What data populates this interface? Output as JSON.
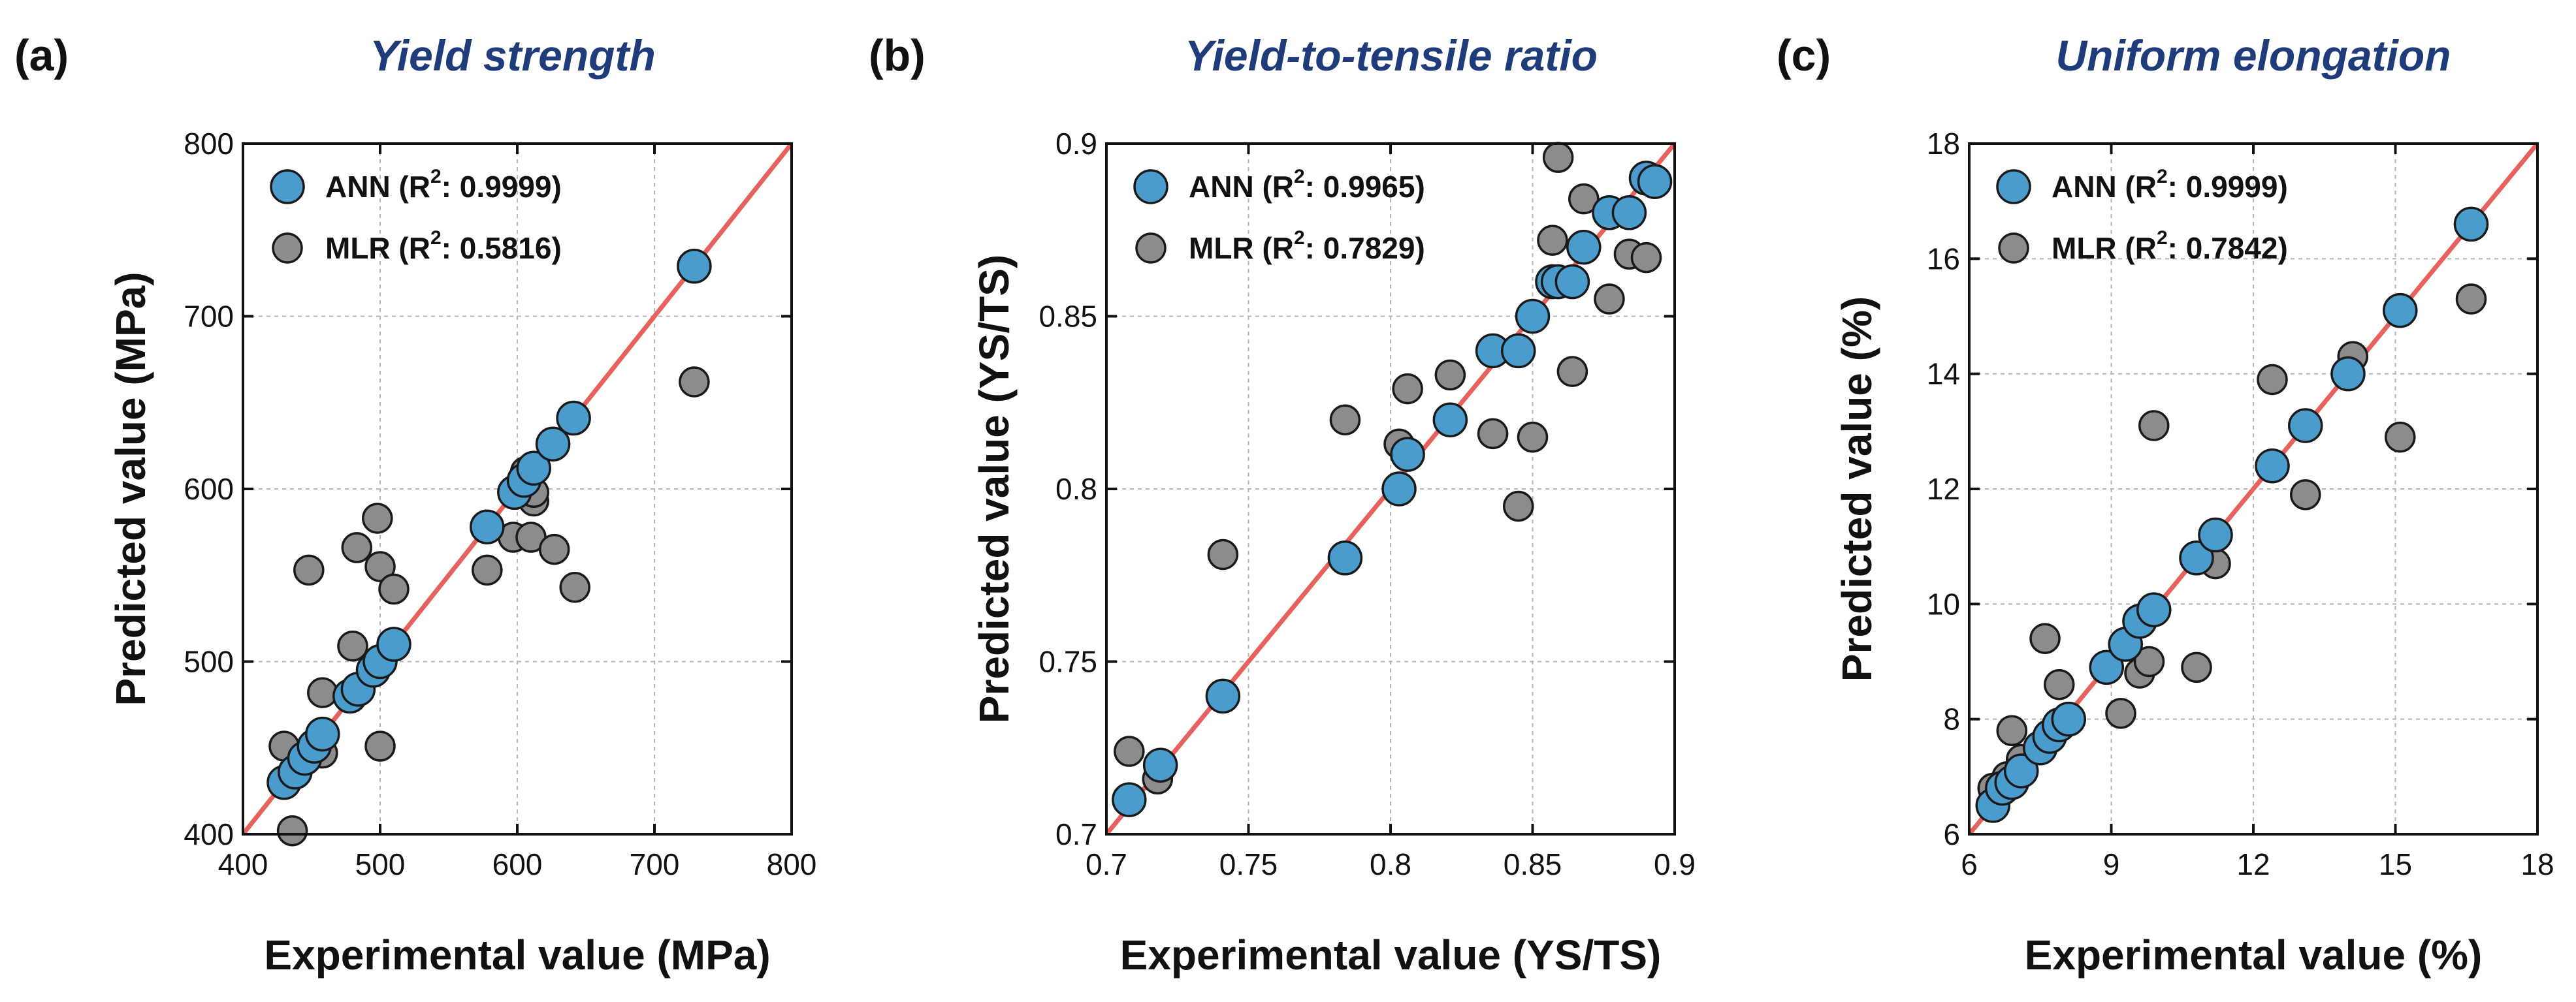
{
  "colors": {
    "ann": "#4a9ccd",
    "mlr": "#8c8c8c",
    "fit_line": "#e8625d",
    "title": "#1f3c7a",
    "grid": "#b5b5b5",
    "marker_edge": "#1a1a1a"
  },
  "chart_data": [
    {
      "type": "scatter",
      "panel_label": "(a)",
      "title": "Yield strength",
      "xlabel": "Experimental value (MPa)",
      "ylabel": "Predicted value (MPa)",
      "xlim": [
        400,
        800
      ],
      "ylim": [
        400,
        800
      ],
      "xticks": [
        400,
        500,
        600,
        700,
        800
      ],
      "yticks": [
        400,
        500,
        600,
        700,
        800
      ],
      "xtick_labels": [
        "400",
        "500",
        "600",
        "700",
        "800"
      ],
      "ytick_labels": [
        "400",
        "500",
        "600",
        "700",
        "800"
      ],
      "grid": true,
      "legend_position": "top-left",
      "reference_line": "y = x",
      "series": [
        {
          "name": "ANN",
          "label_prefix": "ANN (R",
          "r2_text": ": 0.9999)",
          "points": [
            [
              430,
              430
            ],
            [
              438,
              436
            ],
            [
              445,
              444
            ],
            [
              452,
              451
            ],
            [
              458,
              458
            ],
            [
              478,
              480
            ],
            [
              484,
              484
            ],
            [
              495,
              495
            ],
            [
              500,
              500
            ],
            [
              510,
              510
            ],
            [
              578,
              578
            ],
            [
              598,
              598
            ],
            [
              605,
              605
            ],
            [
              612,
              612
            ],
            [
              626,
              626
            ],
            [
              641,
              641
            ],
            [
              729,
              729
            ]
          ]
        },
        {
          "name": "MLR",
          "label_prefix": "MLR (R",
          "r2_text": ": 0.5816)",
          "points": [
            [
              430,
              451
            ],
            [
              436,
              402
            ],
            [
              448,
              553
            ],
            [
              458,
              482
            ],
            [
              458,
              447
            ],
            [
              480,
              509
            ],
            [
              483,
              566
            ],
            [
              498,
              583
            ],
            [
              500,
              555
            ],
            [
              500,
              451
            ],
            [
              510,
              542
            ],
            [
              578,
              553
            ],
            [
              597,
              572
            ],
            [
              606,
              610
            ],
            [
              610,
              572
            ],
            [
              612,
              593
            ],
            [
              612,
              598
            ],
            [
              627,
              565
            ],
            [
              642,
              543
            ],
            [
              729,
              662
            ]
          ]
        }
      ]
    },
    {
      "type": "scatter",
      "panel_label": "(b)",
      "title": "Yield-to-tensile ratio",
      "xlabel": "Experimental value (YS/TS)",
      "ylabel": "Predicted value (YS/TS)",
      "xlim": [
        0.7,
        0.9
      ],
      "ylim": [
        0.7,
        0.9
      ],
      "xticks": [
        0.7,
        0.75,
        0.8,
        0.85,
        0.9
      ],
      "yticks": [
        0.7,
        0.75,
        0.8,
        0.85,
        0.9
      ],
      "xtick_labels": [
        "0.7",
        "0.75",
        "0.8",
        "0.85",
        "0.9"
      ],
      "ytick_labels": [
        "0.7",
        "0.75",
        "0.8",
        "0.85",
        "0.9"
      ],
      "grid": true,
      "legend_position": "top-left",
      "reference_line": "y = x",
      "series": [
        {
          "name": "ANN",
          "label_prefix": "ANN (R",
          "r2_text": ": 0.9965)",
          "points": [
            [
              0.708,
              0.71
            ],
            [
              0.719,
              0.72
            ],
            [
              0.741,
              0.74
            ],
            [
              0.784,
              0.78
            ],
            [
              0.803,
              0.8
            ],
            [
              0.806,
              0.81
            ],
            [
              0.821,
              0.82
            ],
            [
              0.836,
              0.84
            ],
            [
              0.845,
              0.84
            ],
            [
              0.85,
              0.85
            ],
            [
              0.857,
              0.86
            ],
            [
              0.859,
              0.86
            ],
            [
              0.864,
              0.86
            ],
            [
              0.868,
              0.87
            ],
            [
              0.877,
              0.88
            ],
            [
              0.884,
              0.88
            ],
            [
              0.89,
              0.89
            ],
            [
              0.893,
              0.889
            ]
          ]
        },
        {
          "name": "MLR",
          "label_prefix": "MLR (R",
          "r2_text": ": 0.7829)",
          "points": [
            [
              0.708,
              0.724
            ],
            [
              0.718,
              0.716
            ],
            [
              0.741,
              0.781
            ],
            [
              0.784,
              0.82
            ],
            [
              0.803,
              0.813
            ],
            [
              0.806,
              0.829
            ],
            [
              0.821,
              0.833
            ],
            [
              0.836,
              0.816
            ],
            [
              0.845,
              0.795
            ],
            [
              0.85,
              0.815
            ],
            [
              0.857,
              0.872
            ],
            [
              0.859,
              0.896
            ],
            [
              0.864,
              0.834
            ],
            [
              0.868,
              0.884
            ],
            [
              0.877,
              0.855
            ],
            [
              0.884,
              0.868
            ],
            [
              0.89,
              0.867
            ]
          ]
        }
      ]
    },
    {
      "type": "scatter",
      "panel_label": "(c)",
      "title": "Uniform elongation",
      "xlabel": "Experimental value (%)",
      "ylabel": "Predicted value (%)",
      "xlim": [
        6,
        18
      ],
      "ylim": [
        6,
        18
      ],
      "xticks": [
        6,
        9,
        12,
        15,
        18
      ],
      "yticks": [
        6,
        8,
        10,
        12,
        14,
        16,
        18
      ],
      "xtick_labels": [
        "6",
        "9",
        "12",
        "15",
        "18"
      ],
      "ytick_labels": [
        "6",
        "8",
        "10",
        "12",
        "14",
        "16",
        "18"
      ],
      "grid": true,
      "legend_position": "top-left",
      "reference_line": "y = x",
      "series": [
        {
          "name": "ANN",
          "label_prefix": "ANN (R",
          "r2_text": ": 0.9999)",
          "points": [
            [
              6.5,
              6.5
            ],
            [
              6.7,
              6.8
            ],
            [
              6.9,
              6.9
            ],
            [
              7.1,
              7.1
            ],
            [
              7.5,
              7.5
            ],
            [
              7.7,
              7.7
            ],
            [
              7.9,
              7.9
            ],
            [
              8.1,
              8.0
            ],
            [
              8.9,
              8.9
            ],
            [
              9.3,
              9.3
            ],
            [
              9.6,
              9.7
            ],
            [
              9.9,
              9.9
            ],
            [
              10.8,
              10.8
            ],
            [
              11.2,
              11.2
            ],
            [
              12.4,
              12.4
            ],
            [
              13.1,
              13.1
            ],
            [
              14.0,
              14.0
            ],
            [
              15.1,
              15.1
            ],
            [
              16.6,
              16.6
            ]
          ]
        },
        {
          "name": "MLR",
          "label_prefix": "MLR (R",
          "r2_text": ": 0.7842)",
          "points": [
            [
              6.5,
              6.8
            ],
            [
              6.8,
              7.0
            ],
            [
              6.9,
              7.8
            ],
            [
              7.1,
              7.3
            ],
            [
              7.6,
              9.4
            ],
            [
              7.9,
              8.6
            ],
            [
              8.1,
              8.0
            ],
            [
              9.2,
              8.1
            ],
            [
              9.6,
              8.8
            ],
            [
              9.8,
              9.0
            ],
            [
              9.9,
              13.1
            ],
            [
              10.8,
              8.9
            ],
            [
              11.2,
              10.7
            ],
            [
              12.4,
              13.9
            ],
            [
              13.1,
              11.9
            ],
            [
              14.1,
              14.3
            ],
            [
              15.1,
              12.9
            ],
            [
              16.6,
              15.3
            ]
          ]
        }
      ]
    }
  ]
}
